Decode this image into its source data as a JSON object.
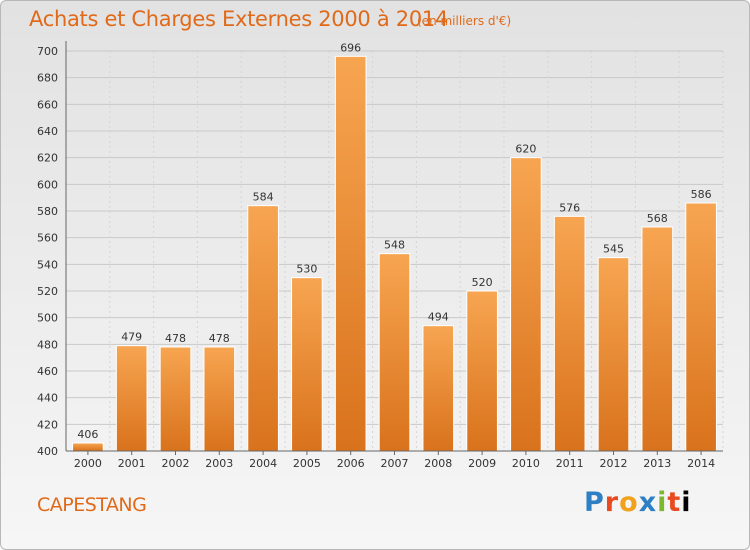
{
  "chart_data": {
    "type": "bar",
    "title": "Achats et Charges Externes 2000 à 2014",
    "subtitle": "(en milliers d'€)",
    "xlabel": "",
    "ylabel": "",
    "categories": [
      "2000",
      "2001",
      "2002",
      "2003",
      "2004",
      "2005",
      "2006",
      "2007",
      "2008",
      "2009",
      "2010",
      "2011",
      "2012",
      "2013",
      "2014"
    ],
    "values": [
      406,
      479,
      478,
      478,
      584,
      530,
      696,
      548,
      494,
      520,
      620,
      576,
      545,
      568,
      586
    ],
    "ylim": [
      400,
      700
    ],
    "yticks": [
      400,
      420,
      440,
      460,
      480,
      500,
      520,
      540,
      560,
      580,
      600,
      620,
      640,
      660,
      680,
      700
    ],
    "grid": true,
    "bar_color": "#f29a3c",
    "bar_color_dark": "#d9721c"
  },
  "footer": {
    "place": "CAPESTANG",
    "logo_text": [
      "P",
      "r",
      "o",
      "x",
      "i",
      "t",
      "i"
    ]
  },
  "colors": {
    "title": "#e06a1a"
  }
}
